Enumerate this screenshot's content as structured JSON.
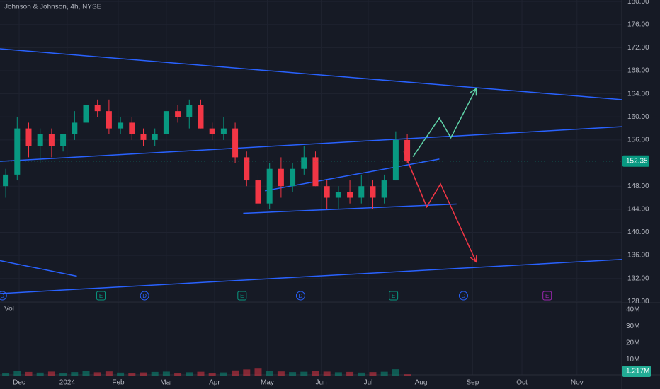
{
  "chart_data": {
    "type": "candlestick",
    "title": "Johnson & Johnson, 4h, NYSE",
    "colors": {
      "up": "#089981",
      "down": "#f23645",
      "drawing": "#2962ff"
    },
    "xlim": [
      -0.5,
      53.7
    ],
    "xticks": [
      {
        "value": 1.17,
        "label": "Dec"
      },
      {
        "value": 5.36,
        "label": "2024"
      },
      {
        "value": 9.81,
        "label": "Feb"
      },
      {
        "value": 14.0,
        "label": "Mar"
      },
      {
        "value": 18.2,
        "label": "Apr"
      },
      {
        "value": 22.8,
        "label": "May"
      },
      {
        "value": 27.5,
        "label": "Jun"
      },
      {
        "value": 31.6,
        "label": "Jul"
      },
      {
        "value": 36.2,
        "label": "Aug"
      },
      {
        "value": 40.7,
        "label": "Sep"
      },
      {
        "value": 45.0,
        "label": "Oct"
      },
      {
        "value": 49.8,
        "label": "Nov"
      }
    ],
    "ylim": [
      127.8,
      180.26
    ],
    "yticks": [
      {
        "value": 128,
        "label": "128.00"
      },
      {
        "value": 132,
        "label": "132.00"
      },
      {
        "value": 136,
        "label": "136.00"
      },
      {
        "value": 140,
        "label": "140.00"
      },
      {
        "value": 144,
        "label": "144.00"
      },
      {
        "value": 148,
        "label": "148.00"
      },
      {
        "value": 152,
        "label": "152.00"
      },
      {
        "value": 156,
        "label": "156.00"
      },
      {
        "value": 160,
        "label": "160.00"
      },
      {
        "value": 164,
        "label": "164.00"
      },
      {
        "value": 168,
        "label": "168.00"
      },
      {
        "value": 172,
        "label": "172.00"
      },
      {
        "value": 176,
        "label": "176.00"
      },
      {
        "value": 180,
        "label": "180.00"
      }
    ],
    "open": [
      148,
      150,
      158,
      155,
      157,
      155,
      157,
      159,
      162,
      161,
      158,
      159,
      157,
      156,
      157,
      161,
      160,
      162,
      158,
      157,
      158,
      153,
      149,
      145,
      151,
      148,
      151,
      153,
      148,
      146,
      147,
      146,
      148,
      146,
      149,
      156
    ],
    "high": [
      151,
      160,
      159,
      158,
      158,
      157,
      161,
      163,
      163,
      163,
      160,
      160,
      158,
      158,
      161,
      162,
      163,
      163,
      159,
      160,
      159,
      154,
      150,
      152,
      153,
      152,
      155,
      154,
      149,
      148,
      149,
      150,
      149,
      150,
      157.5,
      157
    ],
    "low": [
      146,
      149,
      153,
      152,
      153,
      154,
      156,
      158,
      160,
      157,
      157,
      156,
      155,
      155,
      157,
      159,
      158,
      158,
      156,
      156,
      152,
      148,
      143,
      144,
      146,
      147,
      150,
      148,
      144,
      144,
      145,
      145,
      144,
      145,
      149,
      152
    ],
    "close": [
      150,
      158,
      155,
      157,
      155,
      157,
      159,
      162,
      161,
      158,
      159,
      157,
      156,
      157,
      161,
      160,
      162,
      158,
      157,
      158,
      153,
      149,
      145,
      151,
      148,
      151,
      153,
      148,
      146,
      147,
      146,
      148,
      146,
      149,
      156,
      152.35
    ],
    "volume_label": "Vol",
    "volume": [
      2.1,
      3.4,
      2.6,
      2.2,
      2.8,
      1.9,
      2.5,
      3.1,
      2.4,
      2.9,
      2.2,
      2.0,
      2.3,
      2.6,
      2.8,
      2.1,
      2.4,
      2.7,
      2.0,
      2.3,
      3.5,
      4.1,
      4.6,
      3.2,
      2.9,
      2.5,
      2.7,
      3.0,
      2.8,
      2.4,
      2.6,
      2.2,
      2.5,
      2.7,
      4.2,
      1.217
    ],
    "volume_ylim": [
      0,
      40
    ],
    "volume_ticks": [
      {
        "value": 10,
        "label": "10M"
      },
      {
        "value": 20,
        "label": "20M"
      },
      {
        "value": 30,
        "label": "30M"
      },
      {
        "value": 40,
        "label": "40M"
      }
    ],
    "last_price": 152.35,
    "last_volume": {
      "value": 1.217,
      "label": "1.217M"
    },
    "drawings": [
      {
        "kind": "trendline",
        "points": [
          [
            -0.5,
            171.8
          ],
          [
            53.7,
            163.0
          ]
        ]
      },
      {
        "kind": "trendline",
        "points": [
          [
            -0.5,
            152.3
          ],
          [
            53.7,
            158.3
          ]
        ]
      },
      {
        "kind": "trendline",
        "points": [
          [
            22.6,
            147.2
          ],
          [
            37.8,
            152.7
          ]
        ]
      },
      {
        "kind": "trendline",
        "points": [
          [
            20.7,
            143.3
          ],
          [
            39.3,
            144.9
          ]
        ]
      },
      {
        "kind": "trendline",
        "points": [
          [
            -0.5,
            129.4
          ],
          [
            53.7,
            135.3
          ]
        ]
      },
      {
        "kind": "trendline",
        "points": [
          [
            -0.5,
            135.1
          ],
          [
            6.2,
            132.4
          ]
        ]
      },
      {
        "kind": "arrow",
        "color": "#5fd3a8",
        "points": [
          [
            35.5,
            153.1
          ],
          [
            37.8,
            159.8
          ],
          [
            38.8,
            156.4
          ],
          [
            41.0,
            164.9
          ]
        ]
      },
      {
        "kind": "arrow",
        "color": "#f23645",
        "points": [
          [
            34.7,
            154.0
          ],
          [
            36.7,
            144.4
          ],
          [
            37.9,
            148.4
          ],
          [
            41.0,
            134.9
          ]
        ]
      }
    ],
    "events": [
      {
        "label": "D",
        "x": -0.3,
        "color": "#2962ff"
      },
      {
        "label": "E",
        "x": 8.3,
        "color": "#089981"
      },
      {
        "label": "D",
        "x": 12.1,
        "color": "#2962ff"
      },
      {
        "label": "E",
        "x": 20.6,
        "color": "#089981"
      },
      {
        "label": "D",
        "x": 25.7,
        "color": "#2962ff"
      },
      {
        "label": "E",
        "x": 33.8,
        "color": "#089981"
      },
      {
        "label": "D",
        "x": 39.9,
        "color": "#2962ff"
      },
      {
        "label": "E",
        "x": 47.2,
        "color": "#9c27b0"
      }
    ]
  }
}
